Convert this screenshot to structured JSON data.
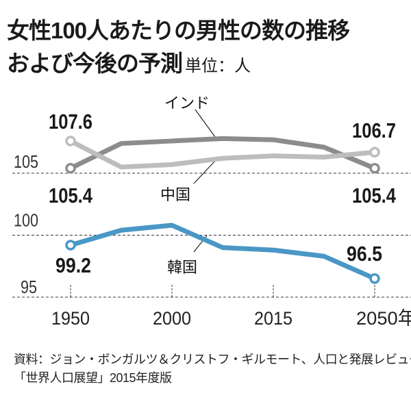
{
  "title": {
    "line1": "女性100人あたりの男性の数の推移",
    "line2": "および今後の予測",
    "unit": "単位：人"
  },
  "source": {
    "line1": "資料：ジョン・ボンガルツ＆クリストフ・ギルモート、人口と発展レビュー",
    "line2": "「世界人口展望」2015年度版"
  },
  "chart_data": {
    "type": "line",
    "title": "女性100人あたりの男性の数の推移および今後の予測",
    "ylabel": "単位：人",
    "x_tick_labels": [
      "1950",
      "2000",
      "2015",
      "2050年"
    ],
    "x_tick_positions": [
      0,
      2,
      4,
      6
    ],
    "y_ticks": [
      "95",
      "100",
      "105"
    ],
    "ylim": [
      93.9,
      109
    ],
    "grid": "dashed horizontal at y ticks",
    "series": [
      {
        "name": "インド",
        "color": "#8c8c8e",
        "values": [
          105.4,
          107.4,
          107.6,
          107.8,
          107.7,
          107.1,
          105.4
        ],
        "start_label": "105.4",
        "end_label": "105.4"
      },
      {
        "name": "中国",
        "color": "#bdbdbf",
        "values": [
          107.6,
          105.5,
          105.7,
          106.2,
          106.4,
          106.3,
          106.7
        ],
        "start_label": "107.6",
        "end_label": "106.7"
      },
      {
        "name": "韓国",
        "color": "#4a97c6",
        "values": [
          99.2,
          100.4,
          100.8,
          99.0,
          98.8,
          98.3,
          96.5
        ],
        "start_label": "99.2",
        "end_label": "96.5"
      }
    ]
  }
}
